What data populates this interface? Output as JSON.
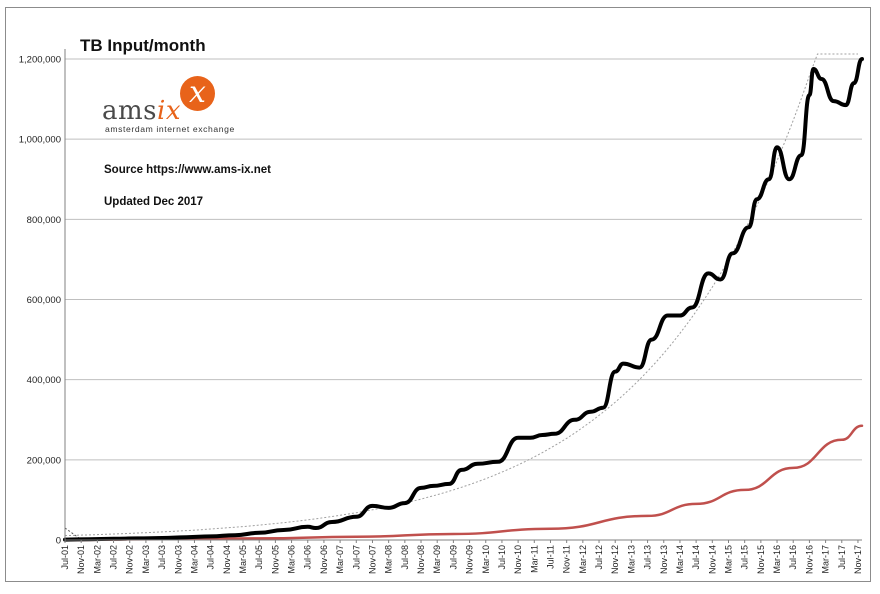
{
  "chart_data": {
    "type": "line",
    "title": "TB Input/month",
    "notes": [
      "Source https://www.ams-ix.net",
      "Updated Dec 2017"
    ],
    "logo": {
      "brand": "amsix",
      "brand_plain": "ams",
      "brand_accent": "ix",
      "mark": "x",
      "tagline": "amsterdam internet exchange"
    },
    "colors": {
      "series_main": "#000000",
      "series_secondary": "#c0504d",
      "trend": "#a0a0a0",
      "grid": "#bfbfbf",
      "accent": "#e8631a"
    },
    "x_range": [
      "Jul-01",
      "Dec-17"
    ],
    "ylim": [
      0,
      1200000
    ],
    "y_ticks": [
      "0",
      "200,000",
      "400,000",
      "600,000",
      "800,000",
      "1,000,000",
      "1,200,000"
    ],
    "grid": true,
    "legend": "none",
    "x_ticks": [
      "Jul-01",
      "Nov-01",
      "Mar-02",
      "Jul-02",
      "Nov-02",
      "Mar-03",
      "Jul-03",
      "Nov-03",
      "Mar-04",
      "Jul-04",
      "Nov-04",
      "Mar-05",
      "Jul-05",
      "Nov-05",
      "Mar-06",
      "Jul-06",
      "Nov-06",
      "Mar-07",
      "Jul-07",
      "Nov-07",
      "Mar-08",
      "Jul-08",
      "Nov-08",
      "Mar-09",
      "Jul-09",
      "Nov-09",
      "Mar-10",
      "Jul-10",
      "Nov-10",
      "Mar-11",
      "Jul-11",
      "Nov-11",
      "Mar-12",
      "Jul-12",
      "Nov-12",
      "Mar-13",
      "Jul-13",
      "Nov-13",
      "Mar-14",
      "Jul-14",
      "Nov-14",
      "Mar-15",
      "Jul-15",
      "Nov-15",
      "Mar-16",
      "Jul-16",
      "Nov-16",
      "Mar-17",
      "Jul-17",
      "Nov-17"
    ],
    "series": [
      {
        "x": [
          "Jul-01",
          "Jan-02",
          "Jul-02",
          "Jan-03",
          "Jul-03",
          "Jan-04",
          "Jul-04",
          "Jan-05",
          "Jul-05",
          "Jan-06",
          "Jul-06",
          "Sep-06",
          "Jan-07",
          "Jul-07",
          "Nov-07",
          "Mar-08",
          "Jul-08",
          "Nov-08",
          "Feb-09",
          "Jun-09",
          "Sep-09",
          "Jan-10",
          "Jun-10",
          "Nov-10",
          "Feb-11",
          "May-11",
          "Aug-11",
          "Jan-12",
          "May-12",
          "Aug-12",
          "Nov-12",
          "Jan-13",
          "May-13",
          "Aug-13",
          "Dec-13",
          "Mar-14",
          "Jun-14",
          "Oct-14",
          "Jan-15",
          "Apr-15",
          "Aug-15",
          "Oct-15",
          "Jan-16",
          "Mar-16",
          "Jun-16",
          "Sep-16",
          "Nov-16",
          "Dec-16",
          "Feb-17",
          "May-17",
          "Aug-17",
          "Oct-17",
          "Dec-17"
        ],
        "values": [
          1000,
          2000,
          3000,
          4000,
          5000,
          7000,
          9000,
          12000,
          18000,
          25000,
          33000,
          30000,
          45000,
          58000,
          85000,
          80000,
          92000,
          130000,
          135000,
          140000,
          175000,
          190000,
          195000,
          255000,
          255000,
          262000,
          265000,
          300000,
          320000,
          330000,
          420000,
          440000,
          430000,
          500000,
          560000,
          560000,
          580000,
          665000,
          650000,
          715000,
          780000,
          850000,
          900000,
          980000,
          900000,
          960000,
          1110000,
          1175000,
          1150000,
          1095000,
          1085000,
          1140000,
          1200000
        ]
      },
      {
        "x": [
          "Jul-01",
          "Jul-03",
          "Jul-05",
          "Jul-07",
          "Jul-09",
          "Jul-11",
          "Jul-13",
          "Jul-14",
          "Jul-15",
          "Jul-16",
          "Jul-17",
          "Dec-17"
        ],
        "values": [
          0,
          2000,
          4000,
          8000,
          15000,
          28000,
          60000,
          90000,
          125000,
          180000,
          250000,
          285000
        ]
      }
    ]
  }
}
